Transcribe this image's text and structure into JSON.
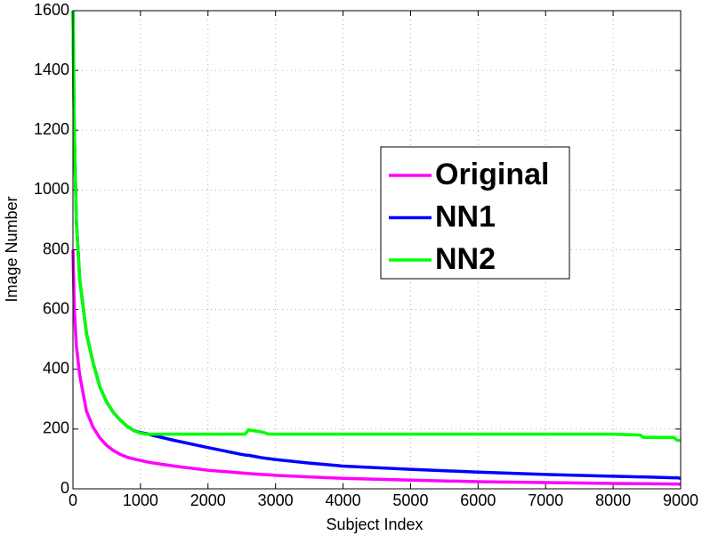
{
  "chart_data": {
    "type": "line",
    "xlabel": "Subject Index",
    "ylabel": "Image Number",
    "x": [
      0,
      20,
      50,
      100,
      200,
      300,
      400,
      500,
      600,
      700,
      800,
      900,
      1000,
      1100,
      1200,
      1500,
      2000,
      2500,
      2550,
      2600,
      2800,
      2900,
      3000,
      3500,
      4000,
      5000,
      6000,
      7000,
      8000,
      8400,
      8450,
      8900,
      8950,
      9000
    ],
    "series": [
      {
        "name": "Original",
        "color": "#ff00ff",
        "values": [
          800,
          600,
          480,
          380,
          260,
          205,
          170,
          145,
          128,
          115,
          106,
          100,
          95,
          90,
          86,
          76,
          62,
          53,
          52,
          51,
          48,
          47,
          45,
          40,
          35,
          29,
          24,
          21,
          18,
          17,
          17,
          16,
          16,
          15
        ]
      },
      {
        "name": "NN1",
        "color": "#0000ff",
        "values": [
          1600,
          1200,
          900,
          700,
          520,
          420,
          340,
          290,
          255,
          230,
          210,
          195,
          188,
          184,
          178,
          162,
          138,
          115,
          113,
          112,
          104,
          101,
          98,
          86,
          76,
          65,
          56,
          48,
          42,
          40,
          40,
          37,
          37,
          35
        ]
      },
      {
        "name": "NN2",
        "color": "#00ff00",
        "values": [
          1600,
          1200,
          900,
          700,
          520,
          420,
          340,
          290,
          255,
          230,
          210,
          195,
          186,
          183,
          183,
          183,
          183,
          183,
          183,
          197,
          190,
          183,
          183,
          183,
          183,
          183,
          183,
          183,
          183,
          180,
          172,
          172,
          162,
          162
        ]
      }
    ],
    "xlim": [
      0,
      9000
    ],
    "xticks": [
      0,
      1000,
      2000,
      3000,
      4000,
      5000,
      6000,
      7000,
      8000,
      9000
    ],
    "ylim": [
      0,
      1600
    ],
    "yticks": [
      0,
      200,
      400,
      600,
      800,
      1000,
      1200,
      1400,
      1600
    ],
    "grid": true
  }
}
